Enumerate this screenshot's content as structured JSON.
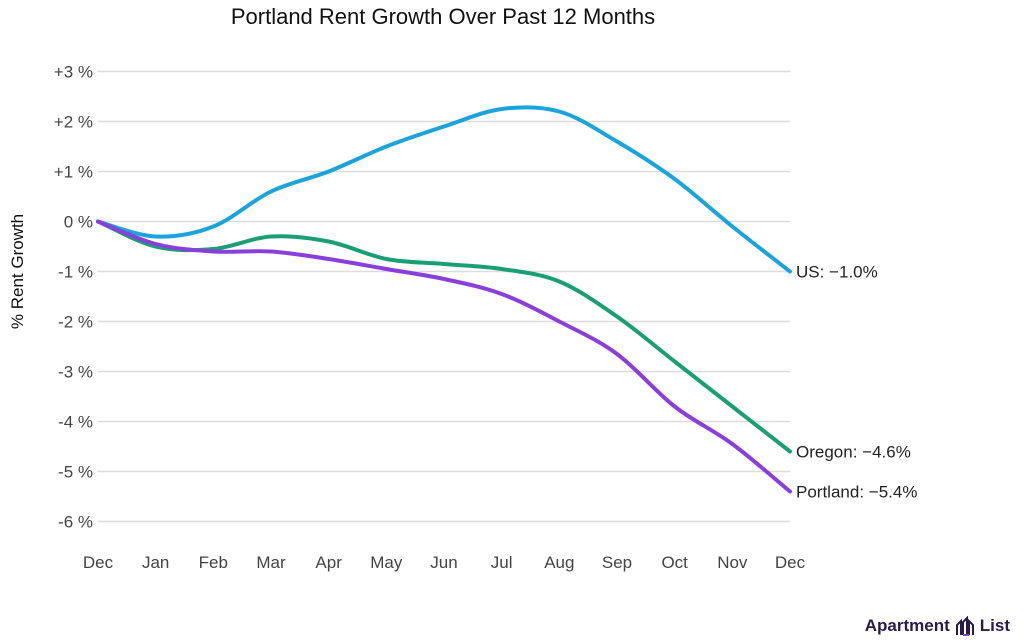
{
  "chart_data": {
    "type": "line",
    "title": "Portland Rent Growth Over Past 12 Months",
    "xlabel": "",
    "ylabel": "% Rent Growth",
    "categories": [
      "Dec",
      "Jan",
      "Feb",
      "Mar",
      "Apr",
      "May",
      "Jun",
      "Jul",
      "Aug",
      "Sep",
      "Oct",
      "Nov",
      "Dec"
    ],
    "yticks": [
      "+3 %",
      "+2 %",
      "+1 %",
      "0 %",
      "-1 %",
      "-2 %",
      "-3 %",
      "-4 %",
      "-5 %",
      "-6 %"
    ],
    "ylim": [
      -6,
      3
    ],
    "grid": true,
    "series": [
      {
        "name": "US",
        "end_label": "US: −1.0%",
        "color": "#1ba3dc",
        "values": [
          0,
          -0.3,
          -0.1,
          0.6,
          1.0,
          1.5,
          1.9,
          2.25,
          2.2,
          1.6,
          0.85,
          -0.1,
          -1.0
        ]
      },
      {
        "name": "Oregon",
        "end_label": "Oregon: −4.6%",
        "color": "#1a9e74",
        "values": [
          0,
          -0.5,
          -0.55,
          -0.3,
          -0.4,
          -0.75,
          -0.85,
          -0.95,
          -1.2,
          -1.9,
          -2.8,
          -3.7,
          -4.6
        ]
      },
      {
        "name": "Portland",
        "end_label": "Portland: −5.4%",
        "color": "#8a3fdc",
        "values": [
          0,
          -0.45,
          -0.6,
          -0.6,
          -0.75,
          -0.95,
          -1.15,
          -1.45,
          -2.0,
          -2.65,
          -3.7,
          -4.45,
          -5.4
        ]
      }
    ]
  },
  "logo": {
    "text_left": "Apartment",
    "text_right": "List"
  }
}
